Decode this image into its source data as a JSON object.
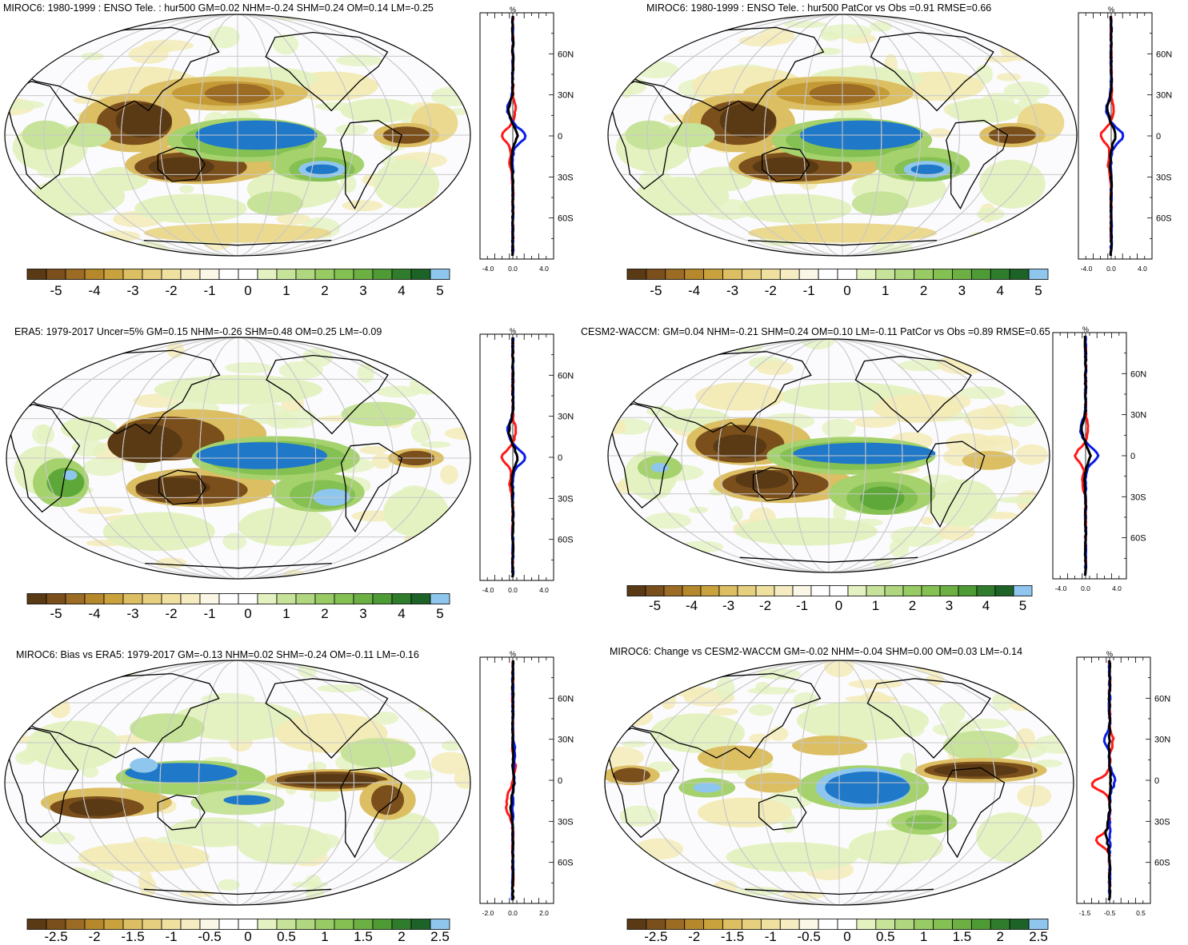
{
  "panels": [
    {
      "id": "p1",
      "title": "MIROC6: 1980-1999 : ENSO Tele. : hur500 GM=0.02 NHM=-0.24 SHM=0.24 OM=0.14 LM=-0.25",
      "colorbar_labels": [
        "-5",
        "-4",
        "-3",
        "-2",
        "-1",
        "0",
        "1",
        "2",
        "3",
        "4",
        "5"
      ],
      "profile_x_ticks": [
        "-4.0",
        "0.0",
        "4.0"
      ],
      "profile_lat_ticks": [
        "60N",
        "30N",
        "0",
        "30S",
        "60S"
      ],
      "profile_unit": "%"
    },
    {
      "id": "p2",
      "title": "MIROC6: 1980-1999 : ENSO Tele. : hur500 PatCor vs Obs =0.91 RMSE=0.66",
      "colorbar_labels": [
        "-5",
        "-4",
        "-3",
        "-2",
        "-1",
        "0",
        "1",
        "2",
        "3",
        "4",
        "5"
      ],
      "profile_x_ticks": [
        "-4.0",
        "0.0",
        "4.0"
      ],
      "profile_lat_ticks": [
        "60N",
        "30N",
        "0",
        "30S",
        "60S"
      ],
      "profile_unit": "%"
    },
    {
      "id": "p3",
      "title": "ERA5: 1979-2017 Uncer=5% GM=0.15 NHM=-0.26 SHM=0.48 OM=0.25 LM=-0.09",
      "colorbar_labels": [
        "-5",
        "-4",
        "-3",
        "-2",
        "-1",
        "0",
        "1",
        "2",
        "3",
        "4",
        "5"
      ],
      "profile_x_ticks": [
        "-4.0",
        "0.0",
        "4.0"
      ],
      "profile_lat_ticks": [
        "60N",
        "30N",
        "0",
        "30S",
        "60S"
      ],
      "profile_unit": "%"
    },
    {
      "id": "p4",
      "title": "CESM2-WACCM: GM=0.04 NHM=-0.21 SHM=0.24 OM=0.10 LM=-0.11 PatCor vs Obs =0.89 RMSE=0.65",
      "colorbar_labels": [
        "-5",
        "-4",
        "-3",
        "-2",
        "-1",
        "0",
        "1",
        "2",
        "3",
        "4",
        "5"
      ],
      "profile_x_ticks": [
        "-4.0",
        "0.0",
        "4.0"
      ],
      "profile_lat_ticks": [
        "60N",
        "30N",
        "0",
        "30S",
        "60S"
      ],
      "profile_unit": "%"
    },
    {
      "id": "p5",
      "title": "MIROC6: Bias vs ERA5: 1979-2017 GM=-0.13 NHM=0.02 SHM=-0.24 OM=-0.11 LM=-0.16",
      "colorbar_labels": [
        "-2.5",
        "-2",
        "-1.5",
        "-1",
        "-0.5",
        "0",
        "0.5",
        "1",
        "1.5",
        "2",
        "2.5"
      ],
      "profile_x_ticks": [
        "-2.0",
        "0.0",
        "2.0"
      ],
      "profile_lat_ticks": [
        "60N",
        "30N",
        "0",
        "30S",
        "60S"
      ],
      "profile_unit": "%"
    },
    {
      "id": "p6",
      "title": "MIROC6: Change vs CESM2-WACCM GM=-0.02 NHM=-0.04 SHM=0.00 OM=0.03 LM=-0.14",
      "colorbar_labels": [
        "-2.5",
        "-2",
        "-1.5",
        "-1",
        "-0.5",
        "0",
        "0.5",
        "1",
        "1.5",
        "2",
        "2.5"
      ],
      "profile_x_ticks": [
        "-1.5",
        "-0.5",
        "0.5"
      ],
      "profile_lat_ticks": [
        "60N",
        "30N",
        "0",
        "30S",
        "60S"
      ],
      "profile_unit": "%"
    }
  ],
  "colors": {
    "palette": [
      "#5a3a14",
      "#7a4f1c",
      "#9c6b24",
      "#c39a36",
      "#dcbe63",
      "#ebd98f",
      "#f3ebb8",
      "#faf6dc",
      "#ffffff",
      "#f7f7f7",
      "#e4f2c2",
      "#c7e39a",
      "#a5d26d",
      "#84c052",
      "#5ea83a",
      "#3d8a2e",
      "#21692a",
      "#8ec6ee",
      "#1f78c8"
    ],
    "series_red": "#ff1a1a",
    "series_blue": "#0a1ee6",
    "series_black": "#000000"
  }
}
